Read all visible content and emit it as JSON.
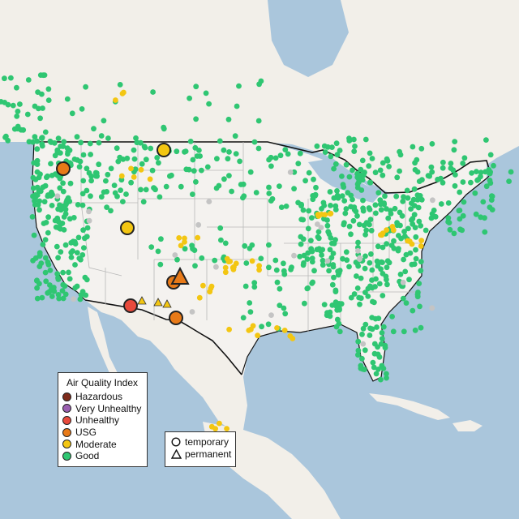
{
  "map": {
    "colors": {
      "land": "#f2efe9",
      "us_land": "#f4f2ef",
      "water": "#aac6dc",
      "country_border": "#111111",
      "state_border": "#b8b8b8"
    }
  },
  "legend_aqi": {
    "title": "Air Quality Index",
    "items": [
      {
        "label": "Hazardous",
        "color": "#7e2b1b"
      },
      {
        "label": "Very Unhealthy",
        "color": "#9a5fb0"
      },
      {
        "label": "Unhealthy",
        "color": "#e84a3c"
      },
      {
        "label": "USG",
        "color": "#e87a18"
      },
      {
        "label": "Moderate",
        "color": "#f3c612"
      },
      {
        "label": "Good",
        "color": "#2fc672"
      }
    ]
  },
  "legend_type": {
    "items": [
      {
        "label": "temporary",
        "shape": "circle"
      },
      {
        "label": "permanent",
        "shape": "triangle"
      }
    ]
  },
  "monitors": {
    "unhealthy": [
      {
        "name": "Arizona monitor",
        "type": "temporary"
      }
    ],
    "usg": [
      {
        "name": "Oregon monitor",
        "type": "temporary"
      },
      {
        "name": "New Mexico monitor",
        "type": "temporary"
      },
      {
        "name": "New Mexico monitor",
        "type": "permanent"
      },
      {
        "name": "Southwest New Mexico monitor",
        "type": "temporary"
      }
    ],
    "moderate_large": [
      {
        "name": "Montana monitor",
        "type": "temporary"
      },
      {
        "name": "Utah monitor",
        "type": "temporary"
      }
    ]
  }
}
